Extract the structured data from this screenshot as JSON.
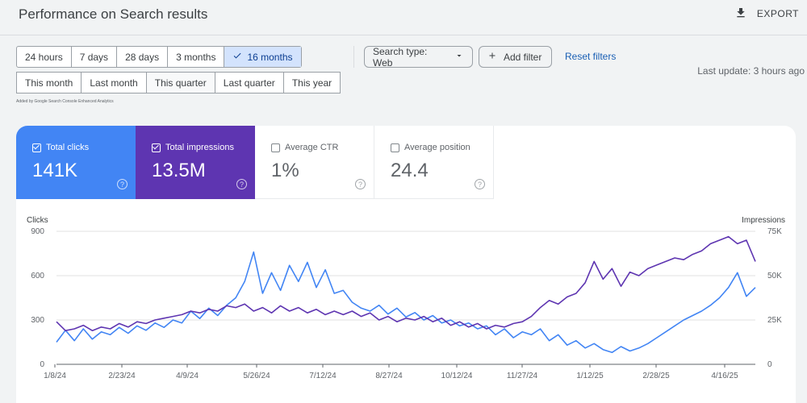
{
  "header": {
    "title": "Performance on Search results",
    "export_label": "EXPORT"
  },
  "date_ranges": {
    "row1": [
      "24 hours",
      "7 days",
      "28 days",
      "3 months",
      "16 months"
    ],
    "row2": [
      "This month",
      "Last month",
      "This quarter",
      "Last quarter",
      "This year"
    ],
    "selected": "16 months"
  },
  "filters": {
    "search_type_label": "Search type: Web",
    "add_filter_label": "Add filter",
    "reset_filters_label": "Reset filters"
  },
  "last_update": "Last update: 3 hours ago",
  "added_by": "Added by Google Search Console Enhanced Analytics",
  "metrics": [
    {
      "label": "Total clicks",
      "value": "141K",
      "checked": true,
      "color": "#4285f4"
    },
    {
      "label": "Total impressions",
      "value": "13.5M",
      "checked": true,
      "color": "#5e35b1"
    },
    {
      "label": "Average CTR",
      "value": "1%",
      "checked": false
    },
    {
      "label": "Average position",
      "value": "24.4",
      "checked": false
    }
  ],
  "chart_data": {
    "type": "line",
    "y_left_label": "Clicks",
    "y_right_label": "Impressions",
    "y_left_ticks": [
      "0",
      "300",
      "600",
      "900"
    ],
    "y_right_ticks": [
      "0",
      "25K",
      "50K",
      "75K"
    ],
    "x_ticks": [
      "1/8/24",
      "2/23/24",
      "4/9/24",
      "5/26/24",
      "7/12/24",
      "8/27/24",
      "10/12/24",
      "11/27/24",
      "1/12/25",
      "2/28/25",
      "4/16/25"
    ],
    "ylim_left": [
      0,
      900
    ],
    "ylim_right": [
      0,
      75000
    ],
    "x_range": [
      "2024-01-08",
      "2025-05-06"
    ],
    "series": [
      {
        "name": "Clicks",
        "axis": "left",
        "color": "#4285f4",
        "values": [
          150,
          230,
          160,
          240,
          170,
          220,
          200,
          250,
          210,
          260,
          230,
          280,
          250,
          300,
          280,
          360,
          310,
          380,
          330,
          400,
          450,
          560,
          760,
          480,
          620,
          500,
          670,
          560,
          690,
          520,
          640,
          480,
          500,
          420,
          380,
          360,
          400,
          340,
          380,
          320,
          350,
          300,
          330,
          280,
          300,
          260,
          280,
          240,
          260,
          200,
          240,
          180,
          220,
          200,
          240,
          160,
          200,
          130,
          160,
          110,
          140,
          100,
          80,
          120,
          90,
          110,
          140,
          180,
          220,
          260,
          300,
          330,
          360,
          400,
          450,
          520,
          620,
          460,
          520
        ]
      },
      {
        "name": "Impressions",
        "axis": "right",
        "color": "#5e35b1",
        "values": [
          24000,
          19000,
          20000,
          22000,
          19000,
          21000,
          20000,
          23000,
          21000,
          24000,
          23000,
          25000,
          26000,
          27000,
          28000,
          30000,
          29000,
          31000,
          30000,
          33000,
          32000,
          34000,
          30000,
          32000,
          29000,
          33000,
          30000,
          32000,
          29000,
          31000,
          28000,
          30000,
          28000,
          30000,
          27000,
          29000,
          25000,
          27000,
          24000,
          26000,
          25000,
          27000,
          24000,
          26000,
          22000,
          24000,
          21000,
          23000,
          20000,
          22000,
          21000,
          23000,
          24000,
          27000,
          32000,
          36000,
          34000,
          38000,
          40000,
          46000,
          58000,
          48000,
          54000,
          44000,
          52000,
          50000,
          54000,
          56000,
          58000,
          60000,
          59000,
          62000,
          64000,
          68000,
          70000,
          72000,
          68000,
          70000,
          58000
        ]
      }
    ]
  }
}
